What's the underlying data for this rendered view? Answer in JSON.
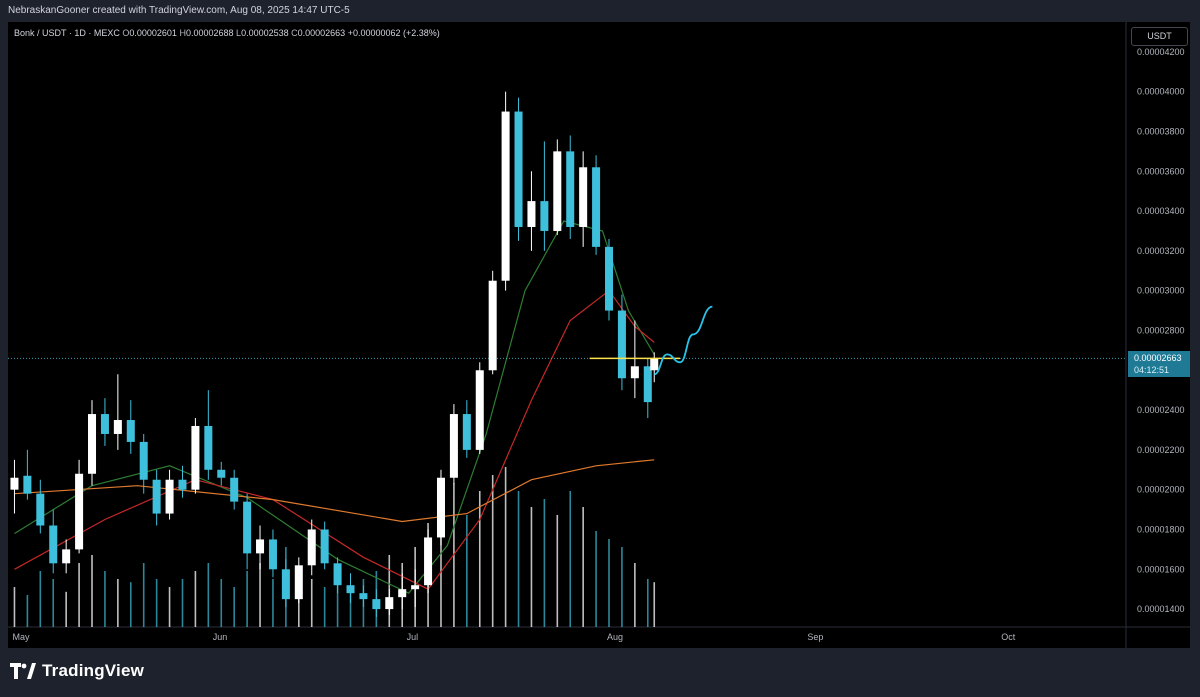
{
  "header": {
    "attribution": "NebraskanGooner created with TradingView.com, Aug 08, 2025 14:47 UTC-5"
  },
  "legend": {
    "symbol": "Bonk / USDT · 1D · MEXC",
    "o_label": "O",
    "open": "0.00002601",
    "h_label": "H",
    "high": "0.00002688",
    "l_label": "L",
    "low": "0.00002538",
    "c_label": "C",
    "close": "0.00002663",
    "change": "+0.00000062 (+2.38%)"
  },
  "price_scale": {
    "unit": "USDT",
    "current_price": "0.00002663",
    "countdown": "04:12:51"
  },
  "brand": {
    "name": "TradingView"
  },
  "colors": {
    "up": "#ffffff",
    "down": "#3ec0dc",
    "ma_fast": "#2e7d32",
    "ma_mid": "#c62828",
    "ma_slow": "#e07a2e",
    "level": "#ffe14d",
    "projection": "#29c3e8"
  },
  "chart_data": {
    "type": "candlestick",
    "title": "",
    "xlabel": "",
    "ylabel": "",
    "y_ticks": [
      "0.00004200",
      "0.00004000",
      "0.00003800",
      "0.00003600",
      "0.00003400",
      "0.00003200",
      "0.00003000",
      "0.00002800",
      "0.00002600",
      "0.00002400",
      "0.00002200",
      "0.00002000",
      "0.00001800",
      "0.00001600",
      "0.00001400"
    ],
    "x_ticks": [
      "May",
      "Jun",
      "Jul",
      "Aug",
      "Sep",
      "Oct"
    ],
    "x_tick_dates": [
      "2025-05-01",
      "2025-06-01",
      "2025-07-01",
      "2025-08-01",
      "2025-09-01",
      "2025-10-01"
    ],
    "ylim": [
      1.31e-05,
      4.35e-05
    ],
    "xlim": [
      "2025-04-30",
      "2025-10-20"
    ],
    "candles": [
      {
        "date": "2025-05-01",
        "o": 2e-05,
        "h": 2.15e-05,
        "l": 1.88e-05,
        "c": 2.06e-05
      },
      {
        "date": "2025-05-03",
        "o": 2.07e-05,
        "h": 2.2e-05,
        "l": 1.95e-05,
        "c": 1.98e-05
      },
      {
        "date": "2025-05-05",
        "o": 1.98e-05,
        "h": 2.05e-05,
        "l": 1.78e-05,
        "c": 1.82e-05
      },
      {
        "date": "2025-05-07",
        "o": 1.82e-05,
        "h": 1.9e-05,
        "l": 1.58e-05,
        "c": 1.63e-05
      },
      {
        "date": "2025-05-09",
        "o": 1.63e-05,
        "h": 1.75e-05,
        "l": 1.58e-05,
        "c": 1.7e-05
      },
      {
        "date": "2025-05-11",
        "o": 1.7e-05,
        "h": 2.15e-05,
        "l": 1.68e-05,
        "c": 2.08e-05
      },
      {
        "date": "2025-05-13",
        "o": 2.08e-05,
        "h": 2.45e-05,
        "l": 2.02e-05,
        "c": 2.38e-05
      },
      {
        "date": "2025-05-15",
        "o": 2.38e-05,
        "h": 2.46e-05,
        "l": 2.22e-05,
        "c": 2.28e-05
      },
      {
        "date": "2025-05-17",
        "o": 2.28e-05,
        "h": 2.58e-05,
        "l": 2.2e-05,
        "c": 2.35e-05
      },
      {
        "date": "2025-05-19",
        "o": 2.35e-05,
        "h": 2.45e-05,
        "l": 2.18e-05,
        "c": 2.24e-05
      },
      {
        "date": "2025-05-21",
        "o": 2.24e-05,
        "h": 2.28e-05,
        "l": 1.98e-05,
        "c": 2.05e-05
      },
      {
        "date": "2025-05-23",
        "o": 2.05e-05,
        "h": 2.1e-05,
        "l": 1.82e-05,
        "c": 1.88e-05
      },
      {
        "date": "2025-05-25",
        "o": 1.88e-05,
        "h": 2.1e-05,
        "l": 1.85e-05,
        "c": 2.05e-05
      },
      {
        "date": "2025-05-27",
        "o": 2.05e-05,
        "h": 2.12e-05,
        "l": 1.96e-05,
        "c": 2e-05
      },
      {
        "date": "2025-05-29",
        "o": 2e-05,
        "h": 2.36e-05,
        "l": 1.98e-05,
        "c": 2.32e-05
      },
      {
        "date": "2025-05-31",
        "o": 2.32e-05,
        "h": 2.5e-05,
        "l": 2.05e-05,
        "c": 2.1e-05
      },
      {
        "date": "2025-06-02",
        "o": 2.1e-05,
        "h": 2.14e-05,
        "l": 2.02e-05,
        "c": 2.06e-05
      },
      {
        "date": "2025-06-04",
        "o": 2.06e-05,
        "h": 2.1e-05,
        "l": 1.9e-05,
        "c": 1.94e-05
      },
      {
        "date": "2025-06-06",
        "o": 1.94e-05,
        "h": 1.98e-05,
        "l": 1.6e-05,
        "c": 1.68e-05
      },
      {
        "date": "2025-06-08",
        "o": 1.68e-05,
        "h": 1.82e-05,
        "l": 1.6e-05,
        "c": 1.75e-05
      },
      {
        "date": "2025-06-10",
        "o": 1.75e-05,
        "h": 1.8e-05,
        "l": 1.56e-05,
        "c": 1.6e-05
      },
      {
        "date": "2025-06-12",
        "o": 1.6e-05,
        "h": 1.65e-05,
        "l": 1.41e-05,
        "c": 1.45e-05
      },
      {
        "date": "2025-06-14",
        "o": 1.45e-05,
        "h": 1.66e-05,
        "l": 1.43e-05,
        "c": 1.62e-05
      },
      {
        "date": "2025-06-16",
        "o": 1.62e-05,
        "h": 1.85e-05,
        "l": 1.57e-05,
        "c": 1.8e-05
      },
      {
        "date": "2025-06-18",
        "o": 1.8e-05,
        "h": 1.84e-05,
        "l": 1.6e-05,
        "c": 1.63e-05
      },
      {
        "date": "2025-06-20",
        "o": 1.63e-05,
        "h": 1.66e-05,
        "l": 1.48e-05,
        "c": 1.52e-05
      },
      {
        "date": "2025-06-22",
        "o": 1.52e-05,
        "h": 1.58e-05,
        "l": 1.43e-05,
        "c": 1.48e-05
      },
      {
        "date": "2025-06-24",
        "o": 1.48e-05,
        "h": 1.52e-05,
        "l": 1.41e-05,
        "c": 1.45e-05
      },
      {
        "date": "2025-06-26",
        "o": 1.45e-05,
        "h": 1.5e-05,
        "l": 1.36e-05,
        "c": 1.4e-05
      },
      {
        "date": "2025-06-28",
        "o": 1.4e-05,
        "h": 1.5e-05,
        "l": 1.37e-05,
        "c": 1.46e-05
      },
      {
        "date": "2025-06-30",
        "o": 1.46e-05,
        "h": 1.58e-05,
        "l": 1.4e-05,
        "c": 1.5e-05
      },
      {
        "date": "2025-07-02",
        "o": 1.5e-05,
        "h": 1.6e-05,
        "l": 1.41e-05,
        "c": 1.52e-05
      },
      {
        "date": "2025-07-04",
        "o": 1.52e-05,
        "h": 1.8e-05,
        "l": 1.48e-05,
        "c": 1.76e-05
      },
      {
        "date": "2025-07-06",
        "o": 1.76e-05,
        "h": 2.1e-05,
        "l": 1.72e-05,
        "c": 2.06e-05
      },
      {
        "date": "2025-07-08",
        "o": 2.06e-05,
        "h": 2.43e-05,
        "l": 2.03e-05,
        "c": 2.38e-05
      },
      {
        "date": "2025-07-10",
        "o": 2.38e-05,
        "h": 2.45e-05,
        "l": 2.16e-05,
        "c": 2.2e-05
      },
      {
        "date": "2025-07-12",
        "o": 2.2e-05,
        "h": 2.64e-05,
        "l": 2.18e-05,
        "c": 2.6e-05
      },
      {
        "date": "2025-07-14",
        "o": 2.6e-05,
        "h": 3.1e-05,
        "l": 2.58e-05,
        "c": 3.05e-05
      },
      {
        "date": "2025-07-16",
        "o": 3.05e-05,
        "h": 4e-05,
        "l": 3e-05,
        "c": 3.9e-05
      },
      {
        "date": "2025-07-18",
        "o": 3.9e-05,
        "h": 3.97e-05,
        "l": 3.25e-05,
        "c": 3.32e-05
      },
      {
        "date": "2025-07-20",
        "o": 3.32e-05,
        "h": 3.6e-05,
        "l": 3.2e-05,
        "c": 3.45e-05
      },
      {
        "date": "2025-07-22",
        "o": 3.45e-05,
        "h": 3.75e-05,
        "l": 3.2e-05,
        "c": 3.3e-05
      },
      {
        "date": "2025-07-24",
        "o": 3.3e-05,
        "h": 3.76e-05,
        "l": 3.28e-05,
        "c": 3.7e-05
      },
      {
        "date": "2025-07-26",
        "o": 3.7e-05,
        "h": 3.78e-05,
        "l": 3.26e-05,
        "c": 3.32e-05
      },
      {
        "date": "2025-07-28",
        "o": 3.32e-05,
        "h": 3.7e-05,
        "l": 3.22e-05,
        "c": 3.62e-05
      },
      {
        "date": "2025-07-30",
        "o": 3.62e-05,
        "h": 3.68e-05,
        "l": 3.18e-05,
        "c": 3.22e-05
      },
      {
        "date": "2025-08-01",
        "o": 3.22e-05,
        "h": 3.26e-05,
        "l": 2.85e-05,
        "c": 2.9e-05
      },
      {
        "date": "2025-08-03",
        "o": 2.9e-05,
        "h": 2.98e-05,
        "l": 2.5e-05,
        "c": 2.56e-05
      },
      {
        "date": "2025-08-05",
        "o": 2.56e-05,
        "h": 2.85e-05,
        "l": 2.46e-05,
        "c": 2.62e-05
      },
      {
        "date": "2025-08-07",
        "o": 2.62e-05,
        "h": 2.66e-05,
        "l": 2.36e-05,
        "c": 2.44e-05
      },
      {
        "date": "2025-08-08",
        "o": 2.6e-05,
        "h": 2.69e-05,
        "l": 2.54e-05,
        "c": 2.66e-05
      }
    ],
    "volume_bars": [
      0.25,
      0.2,
      0.35,
      0.3,
      0.22,
      0.4,
      0.45,
      0.35,
      0.3,
      0.28,
      0.4,
      0.3,
      0.25,
      0.3,
      0.35,
      0.4,
      0.3,
      0.25,
      0.35,
      0.4,
      0.3,
      0.5,
      0.35,
      0.3,
      0.25,
      0.3,
      0.25,
      0.3,
      0.35,
      0.45,
      0.4,
      0.5,
      0.65,
      0.8,
      0.9,
      0.7,
      0.85,
      0.95,
      1.0,
      0.85,
      0.75,
      0.8,
      0.7,
      0.85,
      0.75,
      0.6,
      0.55,
      0.5,
      0.4,
      0.3,
      0.28
    ],
    "series": [
      {
        "name": "",
        "kind": "ma_fast",
        "points": [
          [
            "2025-05-01",
            1.78e-05
          ],
          [
            "2025-05-13",
            2.02e-05
          ],
          [
            "2025-05-25",
            2.12e-05
          ],
          [
            "2025-06-06",
            1.96e-05
          ],
          [
            "2025-06-20",
            1.65e-05
          ],
          [
            "2025-07-01",
            1.48e-05
          ],
          [
            "2025-07-07",
            1.72e-05
          ],
          [
            "2025-07-13",
            2.28e-05
          ],
          [
            "2025-07-19",
            3e-05
          ],
          [
            "2025-07-25",
            3.35e-05
          ],
          [
            "2025-07-31",
            3.3e-05
          ],
          [
            "2025-08-04",
            2.9e-05
          ],
          [
            "2025-08-08",
            2.68e-05
          ]
        ]
      },
      {
        "name": "",
        "kind": "ma_mid",
        "points": [
          [
            "2025-05-01",
            1.6e-05
          ],
          [
            "2025-05-15",
            1.85e-05
          ],
          [
            "2025-05-29",
            2.05e-05
          ],
          [
            "2025-06-10",
            1.95e-05
          ],
          [
            "2025-06-24",
            1.66e-05
          ],
          [
            "2025-07-04",
            1.5e-05
          ],
          [
            "2025-07-12",
            1.85e-05
          ],
          [
            "2025-07-20",
            2.45e-05
          ],
          [
            "2025-07-26",
            2.85e-05
          ],
          [
            "2025-08-01",
            3e-05
          ],
          [
            "2025-08-05",
            2.82e-05
          ],
          [
            "2025-08-08",
            2.74e-05
          ]
        ]
      },
      {
        "name": "",
        "kind": "ma_slow",
        "points": [
          [
            "2025-05-01",
            1.98e-05
          ],
          [
            "2025-05-20",
            2.02e-05
          ],
          [
            "2025-06-10",
            1.95e-05
          ],
          [
            "2025-06-30",
            1.84e-05
          ],
          [
            "2025-07-10",
            1.88e-05
          ],
          [
            "2025-07-20",
            2.05e-05
          ],
          [
            "2025-07-30",
            2.12e-05
          ],
          [
            "2025-08-08",
            2.15e-05
          ]
        ]
      }
    ],
    "annotations": {
      "horizontal_level": {
        "value": 2.66e-05,
        "from": "2025-07-29",
        "to": "2025-08-12"
      },
      "projection_path": [
        [
          "2025-08-08",
          2.58e-05
        ],
        [
          "2025-08-10",
          2.68e-05
        ],
        [
          "2025-08-12",
          2.64e-05
        ],
        [
          "2025-08-14",
          2.78e-05
        ],
        [
          "2025-08-17",
          2.92e-05
        ]
      ],
      "current_price_line": 2.66e-05
    },
    "grid": false,
    "legend_position": "top-left"
  }
}
